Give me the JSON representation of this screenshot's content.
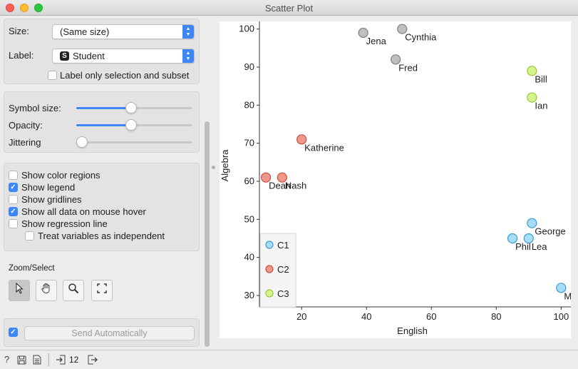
{
  "window": {
    "title": "Scatter Plot"
  },
  "attributes": {
    "size_label": "Size:",
    "size_value": "(Same size)",
    "label_label": "Label:",
    "label_value": "Student",
    "label_badge": "S",
    "label_only_selection": "Label only selection and subset",
    "label_only_selection_checked": false
  },
  "symbol": {
    "size_label": "Symbol size:",
    "size_level": 0.47,
    "opacity_label": "Opacity:",
    "opacity_level": 0.47,
    "jittering_label": "Jittering",
    "jittering_level": 0.0
  },
  "options": [
    {
      "label": "Show color regions",
      "checked": false,
      "indent": false
    },
    {
      "label": "Show legend",
      "checked": true,
      "indent": false
    },
    {
      "label": "Show gridlines",
      "checked": false,
      "indent": false
    },
    {
      "label": "Show all data on mouse hover",
      "checked": true,
      "indent": false
    },
    {
      "label": "Show regression line",
      "checked": false,
      "indent": false
    },
    {
      "label": "Treat variables as independent",
      "checked": false,
      "indent": true
    }
  ],
  "zoom": {
    "title": "Zoom/Select",
    "tools": [
      "pointer-icon",
      "hand-icon",
      "magnifier-icon",
      "fit-icon"
    ],
    "active": 0
  },
  "commit": {
    "auto_checked": true,
    "label": "Send Automatically"
  },
  "status": {
    "count": "12"
  },
  "colors": {
    "C1": "#a6dcf6",
    "C2": "#f0978b",
    "C3": "#d3f58c",
    "gray": "#bfbfbf",
    "accent": "#3d86f6"
  },
  "chart_data": {
    "type": "scatter",
    "xlabel": "English",
    "ylabel": "Algebra",
    "xlim": [
      7,
      103
    ],
    "ylim": [
      27,
      102
    ],
    "xticks": [
      20,
      40,
      60,
      80,
      100
    ],
    "yticks": [
      30,
      40,
      50,
      60,
      70,
      80,
      90,
      100
    ],
    "grid": false,
    "legend_position": "bottom-left",
    "legend": [
      "C1",
      "C2",
      "C3"
    ],
    "points": [
      {
        "name": "Jena",
        "x": 39,
        "y": 99,
        "cls": "gray"
      },
      {
        "name": "Cynthia",
        "x": 51,
        "y": 100,
        "cls": "gray"
      },
      {
        "name": "Fred",
        "x": 49,
        "y": 92,
        "cls": "gray"
      },
      {
        "name": "Bill",
        "x": 91,
        "y": 89,
        "cls": "C3"
      },
      {
        "name": "Ian",
        "x": 91,
        "y": 82,
        "cls": "C3"
      },
      {
        "name": "Katherine",
        "x": 20,
        "y": 71,
        "cls": "C2"
      },
      {
        "name": "Dean",
        "x": 9,
        "y": 61,
        "cls": "C2"
      },
      {
        "name": "Nash",
        "x": 14,
        "y": 61,
        "cls": "C2"
      },
      {
        "name": "George",
        "x": 91,
        "y": 49,
        "cls": "C1"
      },
      {
        "name": "Phil",
        "x": 85,
        "y": 45,
        "cls": "C1"
      },
      {
        "name": "Lea",
        "x": 90,
        "y": 45,
        "cls": "C1"
      },
      {
        "name": "Maya",
        "x": 100,
        "y": 32,
        "cls": "C1"
      }
    ]
  }
}
